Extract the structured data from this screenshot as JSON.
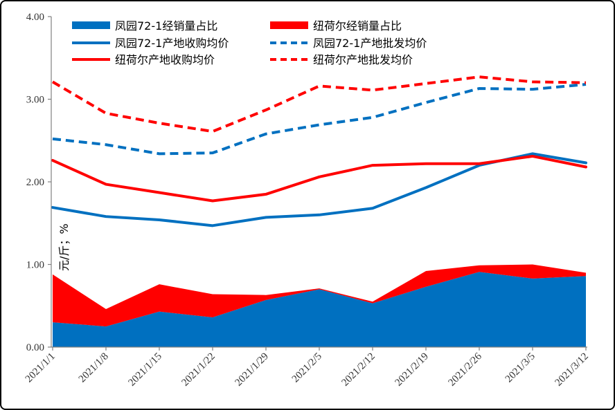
{
  "chart_data": {
    "type": "line",
    "ylabel": "元/斤；%",
    "ylim": [
      0,
      4
    ],
    "yticks": [
      "0.00",
      "1.00",
      "2.00",
      "3.00",
      "4.00"
    ],
    "categories": [
      "2021/1/1",
      "2021/1/8",
      "2021/1/15",
      "2021/1/22",
      "2021/1/29",
      "2021/2/5",
      "2021/2/12",
      "2021/2/19",
      "2021/2/26",
      "2021/3/5",
      "2021/3/12"
    ],
    "grid": false,
    "legend_position": "top",
    "series": [
      {
        "name": "凤园72-1经销量占比",
        "kind": "area",
        "color": "#0070c0",
        "values": [
          0.3,
          0.25,
          0.43,
          0.36,
          0.57,
          0.7,
          0.53,
          0.73,
          0.91,
          0.83,
          0.86
        ]
      },
      {
        "name": "纽荷尔经销量占比",
        "kind": "area",
        "color": "#ff0000",
        "values": [
          0.58,
          0.21,
          0.33,
          0.28,
          0.06,
          0.01,
          0.02,
          0.19,
          0.08,
          0.17,
          0.04
        ]
      },
      {
        "name": "凤园72-1产地收购均价",
        "kind": "line",
        "color": "#0070c0",
        "dash": false,
        "values": [
          1.69,
          1.58,
          1.54,
          1.47,
          1.57,
          1.6,
          1.68,
          1.93,
          2.2,
          2.34,
          2.23
        ]
      },
      {
        "name": "凤园72-1产地批发均价",
        "kind": "line",
        "color": "#0070c0",
        "dash": true,
        "values": [
          2.52,
          2.45,
          2.34,
          2.35,
          2.58,
          2.69,
          2.78,
          2.96,
          3.13,
          3.12,
          3.18
        ]
      },
      {
        "name": "纽荷尔产地收购均价",
        "kind": "line",
        "color": "#ff0000",
        "dash": false,
        "values": [
          2.26,
          1.97,
          1.87,
          1.77,
          1.85,
          2.06,
          2.2,
          2.22,
          2.22,
          2.31,
          2.18
        ]
      },
      {
        "name": "纽荷尔产地批发均价",
        "kind": "line",
        "color": "#ff0000",
        "dash": true,
        "values": [
          3.21,
          2.83,
          2.71,
          2.61,
          2.87,
          3.16,
          3.11,
          3.19,
          3.27,
          3.21,
          3.2
        ]
      }
    ]
  }
}
